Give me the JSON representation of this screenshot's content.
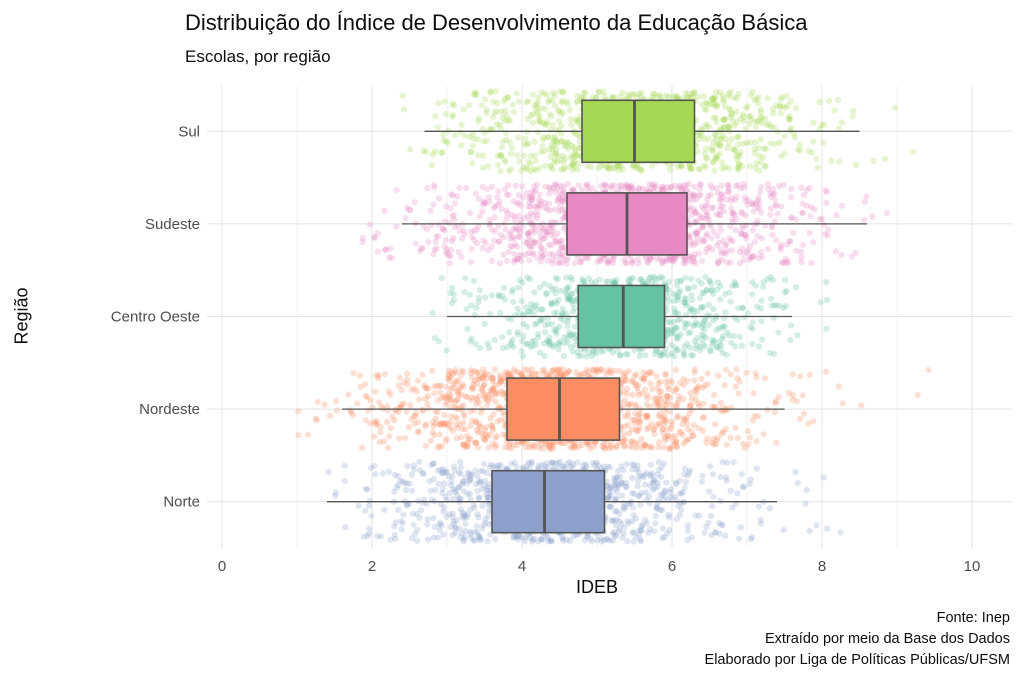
{
  "title": "Distribuição do Índice de Desenvolvimento da Educação Básica",
  "subtitle": "Escolas, por região",
  "caption_lines": [
    "Fonte: Inep",
    "Extraído por meio da Base dos Dados",
    "Elaborado por Liga de Políticas Públicas/UFSM"
  ],
  "chart_data": {
    "type": "boxplot",
    "subtype": "horizontal-boxplot-with-jitter",
    "title": "Distribuição do Índice de Desenvolvimento da Educação Básica",
    "subtitle": "Escolas, por região",
    "xlabel": "IDEB",
    "ylabel": "Região",
    "xlim": [
      0,
      10
    ],
    "x_ticks": [
      0,
      2,
      4,
      6,
      8,
      10
    ],
    "grid": "on",
    "legend": "none",
    "categories": [
      "Sul",
      "Sudeste",
      "Centro Oeste",
      "Nordeste",
      "Norte"
    ],
    "series": [
      {
        "name": "Sul",
        "color": "#a6d854",
        "whisker_low": 2.7,
        "q1": 4.8,
        "median": 5.5,
        "q3": 6.3,
        "whisker_high": 8.5,
        "points_min": 2.4,
        "points_max": 9.4,
        "n_points": 950
      },
      {
        "name": "Sudeste",
        "color": "#e78ac3",
        "whisker_low": 2.4,
        "q1": 4.6,
        "median": 5.4,
        "q3": 6.2,
        "whisker_high": 8.6,
        "points_min": 1.8,
        "points_max": 8.9,
        "n_points": 1150
      },
      {
        "name": "Centro Oeste",
        "color": "#66c2a5",
        "whisker_low": 3.0,
        "q1": 4.75,
        "median": 5.35,
        "q3": 5.9,
        "whisker_high": 7.6,
        "points_min": 2.7,
        "points_max": 8.1,
        "n_points": 750
      },
      {
        "name": "Nordeste",
        "color": "#fc8d62",
        "whisker_low": 1.6,
        "q1": 3.8,
        "median": 4.5,
        "q3": 5.3,
        "whisker_high": 7.5,
        "points_min": 1.0,
        "points_max": 9.5,
        "n_points": 1200
      },
      {
        "name": "Norte",
        "color": "#8da0cb",
        "whisker_low": 1.4,
        "q1": 3.6,
        "median": 4.3,
        "q3": 5.1,
        "whisker_high": 7.4,
        "points_min": 1.3,
        "points_max": 8.6,
        "n_points": 950
      }
    ],
    "style": {
      "box_border_color": "#545454",
      "grid_major_color": "#e3e3e3",
      "grid_minor_color": "#f0f0f0",
      "tick_label_color": "#4d4d4d",
      "point_opacity": 0.28
    }
  }
}
